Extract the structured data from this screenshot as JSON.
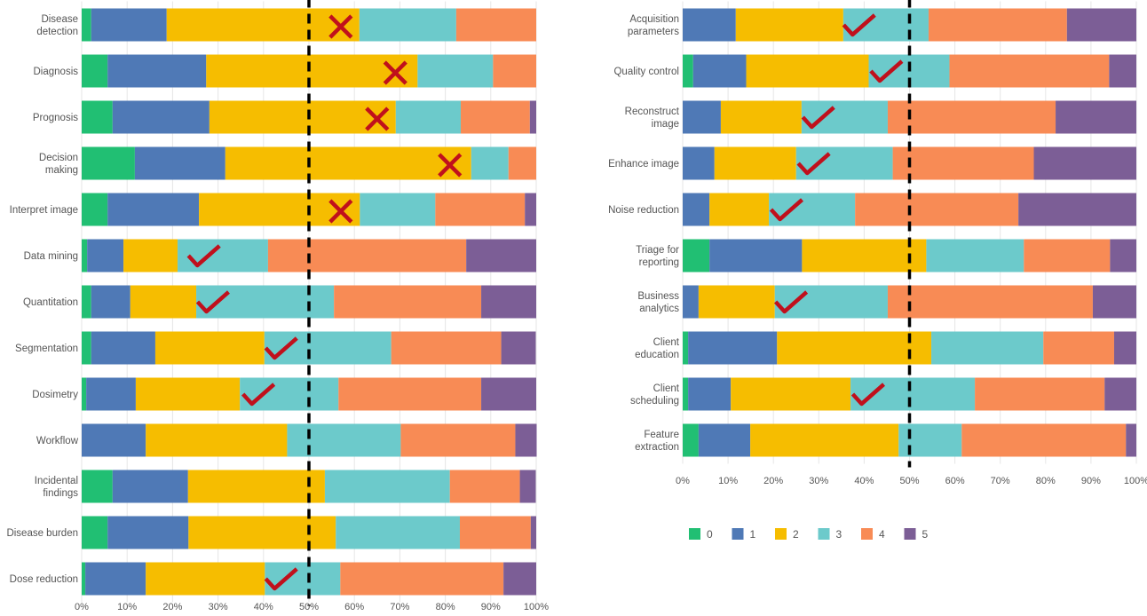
{
  "chart_data": [
    {
      "type": "bar",
      "orientation": "horizontal",
      "stacked": true,
      "percent": true,
      "xlim": [
        0,
        100
      ],
      "x_ticks": [
        "0%",
        "10%",
        "20%",
        "30%",
        "40%",
        "50%",
        "60%",
        "70%",
        "80%",
        "90%",
        "100%"
      ],
      "grid": true,
      "reference_line": {
        "x": 50,
        "style": "dashed",
        "color": "#000000"
      },
      "categories": [
        [
          "Disease",
          "detection"
        ],
        [
          "Diagnosis"
        ],
        [
          "Prognosis"
        ],
        [
          "Decision",
          "making"
        ],
        [
          "Interpret image"
        ],
        [
          "Data mining"
        ],
        [
          "Quantitation"
        ],
        [
          "Segmentation"
        ],
        [
          "Dosimetry"
        ],
        [
          "Workflow"
        ],
        [
          "Incidental",
          "findings"
        ],
        [
          "Disease burden"
        ],
        [
          "Dose reduction"
        ]
      ],
      "series": [
        {
          "name": "0",
          "values": [
            2.1,
            5.7,
            6.8,
            11.7,
            5.7,
            1.2,
            2.1,
            2.1,
            1.0,
            0,
            6.8,
            5.7,
            0.8
          ]
        },
        {
          "name": "1",
          "values": [
            16.6,
            21.7,
            21.3,
            19.9,
            20.1,
            8.0,
            8.6,
            14.1,
            10.9,
            14.1,
            16.6,
            17.8,
            13.3
          ]
        },
        {
          "name": "2",
          "values": [
            42.4,
            46.5,
            41.0,
            54.1,
            35.4,
            11.9,
            14.5,
            24.0,
            22.9,
            31.1,
            30.1,
            32.4,
            26.2
          ]
        },
        {
          "name": "3",
          "values": [
            21.3,
            16.6,
            14.3,
            8.2,
            16.6,
            19.9,
            30.3,
            27.9,
            21.7,
            25.0,
            27.5,
            27.3,
            16.6
          ]
        },
        {
          "name": "4",
          "values": [
            17.6,
            9.5,
            15.2,
            6.1,
            19.7,
            43.6,
            32.4,
            24.2,
            31.4,
            25.2,
            15.4,
            15.6,
            35.9
          ]
        },
        {
          "name": "5",
          "values": [
            0,
            0,
            1.4,
            0,
            2.5,
            15.4,
            12.1,
            7.6,
            12.1,
            4.7,
            3.5,
            1.2,
            7.2
          ]
        }
      ],
      "markers": [
        {
          "type": "cross",
          "x": 57
        },
        {
          "type": "cross",
          "x": 69
        },
        {
          "type": "cross",
          "x": 65
        },
        {
          "type": "cross",
          "x": 81
        },
        {
          "type": "cross",
          "x": 57
        },
        {
          "type": "check",
          "x": 27
        },
        {
          "type": "check",
          "x": 29
        },
        {
          "type": "check",
          "x": 44
        },
        {
          "type": "check",
          "x": 39
        },
        null,
        null,
        null,
        {
          "type": "check",
          "x": 44
        }
      ]
    },
    {
      "type": "bar",
      "orientation": "horizontal",
      "stacked": true,
      "percent": true,
      "xlim": [
        0,
        100
      ],
      "x_ticks": [
        "0%",
        "10%",
        "20%",
        "30%",
        "40%",
        "50%",
        "60%",
        "70%",
        "80%",
        "90%",
        "100%"
      ],
      "grid": true,
      "reference_line": {
        "x": 50,
        "style": "dashed",
        "color": "#000000"
      },
      "categories": [
        [
          "Acquisition",
          "parameters"
        ],
        [
          "Quality control"
        ],
        [
          "Reconstruct",
          "image"
        ],
        [
          "Enhance image"
        ],
        [
          "Noise reduction"
        ],
        [
          "Triage for",
          "reporting"
        ],
        [
          "Business",
          "analytics"
        ],
        [
          "Client",
          "education"
        ],
        [
          "Client",
          "scheduling"
        ],
        [
          "Feature",
          "extraction"
        ]
      ],
      "series": [
        {
          "name": "0",
          "values": [
            0,
            2.3,
            0,
            0,
            0,
            5.9,
            0,
            1.2,
            1.2,
            3.5
          ]
        },
        {
          "name": "1",
          "values": [
            11.7,
            11.7,
            8.4,
            7.0,
            5.9,
            20.4,
            3.5,
            19.6,
            9.4,
            11.4
          ]
        },
        {
          "name": "2",
          "values": [
            23.7,
            27.0,
            17.8,
            18.0,
            13.1,
            27.4,
            16.8,
            34.0,
            26.4,
            32.7
          ]
        },
        {
          "name": "3",
          "values": [
            18.8,
            17.8,
            19.0,
            21.3,
            19.0,
            21.5,
            24.9,
            24.7,
            27.4,
            13.9
          ]
        },
        {
          "name": "4",
          "values": [
            30.5,
            35.2,
            37.0,
            31.1,
            36.0,
            19.0,
            45.2,
            15.6,
            28.6,
            36.2
          ]
        },
        {
          "name": "5",
          "values": [
            15.3,
            6.0,
            17.8,
            22.6,
            26.0,
            5.8,
            9.6,
            4.9,
            7.0,
            2.3
          ]
        }
      ],
      "markers": [
        {
          "type": "check",
          "x": 39
        },
        {
          "type": "check",
          "x": 45
        },
        {
          "type": "check",
          "x": 30
        },
        {
          "type": "check",
          "x": 29
        },
        {
          "type": "check",
          "x": 23
        },
        null,
        {
          "type": "check",
          "x": 24
        },
        null,
        {
          "type": "check",
          "x": 41
        },
        null
      ]
    }
  ],
  "legend": {
    "placement": "bottom-right",
    "items": [
      "0",
      "1",
      "2",
      "3",
      "4",
      "5"
    ]
  },
  "colors": {
    "series": [
      "#21bf73",
      "#4f79b6",
      "#f6bd00",
      "#6ccacb",
      "#f88b55",
      "#7c5e96"
    ],
    "marker": "#c0101c",
    "grid": "#e6e6e6"
  }
}
